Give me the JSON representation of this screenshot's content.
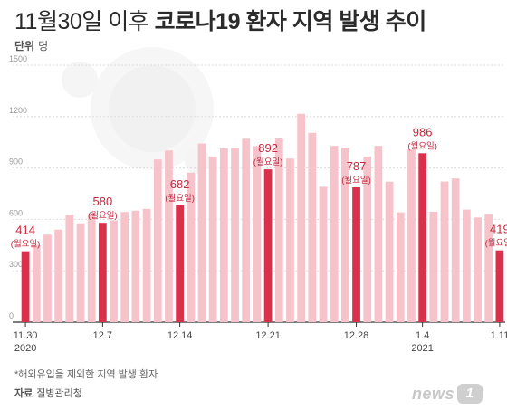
{
  "title_light": "11월30일 이후",
  "title_bold": "코로나19 환자 지역 발생 추이",
  "unit_label": "단위",
  "unit_value": "명",
  "footnote": "*해외유입을 제외한 지역 발생 환자",
  "source_label": "자료",
  "source_value": "질병관리청",
  "logo_text": "news",
  "logo_badge": "1",
  "colors": {
    "light_bar": "#f6c3ca",
    "highlight_bar": "#d9304c",
    "label": "#c7283f",
    "grid": "#dddddd",
    "axis": "#333333"
  },
  "chart_data": {
    "type": "bar",
    "ylim": [
      0,
      1500
    ],
    "yticks": [
      0,
      300,
      600,
      900,
      1200,
      1500
    ],
    "values": [
      414,
      451,
      511,
      540,
      628,
      577,
      631,
      580,
      594,
      643,
      651,
      661,
      950,
      1002,
      682,
      873,
      1043,
      967,
      1015,
      1016,
      1071,
      1028,
      892,
      1072,
      955,
      1216,
      1105,
      790,
      1029,
      1019,
      787,
      967,
      1029,
      820,
      641,
      1007,
      986,
      645,
      821,
      839,
      657,
      611,
      633,
      419
    ],
    "highlight": [
      0,
      7,
      14,
      22,
      30,
      36,
      43
    ],
    "annotations": [
      {
        "index": 0,
        "value": "414",
        "note": "(월요일)"
      },
      {
        "index": 7,
        "value": "580",
        "note": "(월요일)"
      },
      {
        "index": 14,
        "value": "682",
        "note": "(월요일)"
      },
      {
        "index": 22,
        "value": "892",
        "note": "(월요일)"
      },
      {
        "index": 30,
        "value": "787",
        "note": "(월요일)"
      },
      {
        "index": 36,
        "value": "986",
        "note": "(월요일)"
      },
      {
        "index": 43,
        "value": "419",
        "note": "(월요일)"
      }
    ],
    "xticks": [
      {
        "index": 0,
        "label": "11.30",
        "sub": "2020"
      },
      {
        "index": 7,
        "label": "12.7",
        "sub": ""
      },
      {
        "index": 14,
        "label": "12.14",
        "sub": ""
      },
      {
        "index": 22,
        "label": "12.21",
        "sub": ""
      },
      {
        "index": 30,
        "label": "12.28",
        "sub": ""
      },
      {
        "index": 36,
        "label": "1.4",
        "sub": "2021"
      },
      {
        "index": 43,
        "label": "1.11",
        "sub": ""
      }
    ]
  }
}
